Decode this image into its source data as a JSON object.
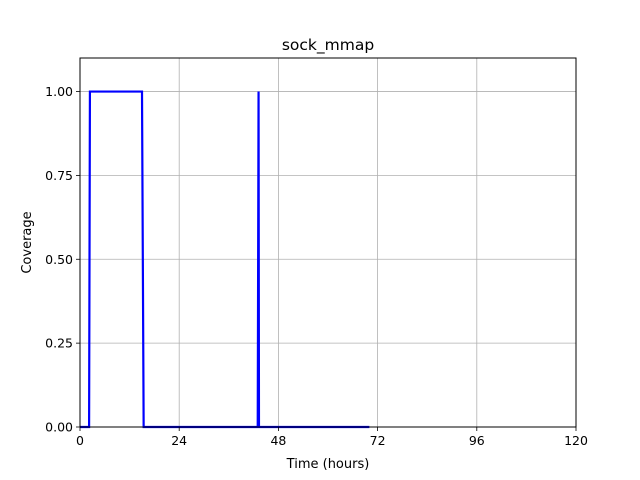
{
  "chart_data": {
    "type": "line",
    "title": "sock_mmap",
    "xlabel": "Time (hours)",
    "ylabel": "Coverage",
    "xlim": [
      0,
      120
    ],
    "ylim": [
      0,
      1.1
    ],
    "xticks": [
      0,
      24,
      48,
      72,
      96,
      120
    ],
    "yticks": [
      0.0,
      0.25,
      0.5,
      0.75,
      1.0
    ],
    "xtick_labels": [
      "0",
      "24",
      "48",
      "72",
      "96",
      "120"
    ],
    "ytick_labels": [
      "0.00",
      "0.25",
      "0.50",
      "0.75",
      "1.00"
    ],
    "grid": true,
    "series": [
      {
        "color": "#0000ff",
        "x": [
          0,
          2.2,
          2.4,
          15,
          15.4,
          43.0,
          43.2,
          43.3,
          43.5,
          70
        ],
        "y": [
          0,
          0,
          1,
          1,
          0,
          0,
          1,
          0,
          0,
          0
        ]
      }
    ]
  }
}
